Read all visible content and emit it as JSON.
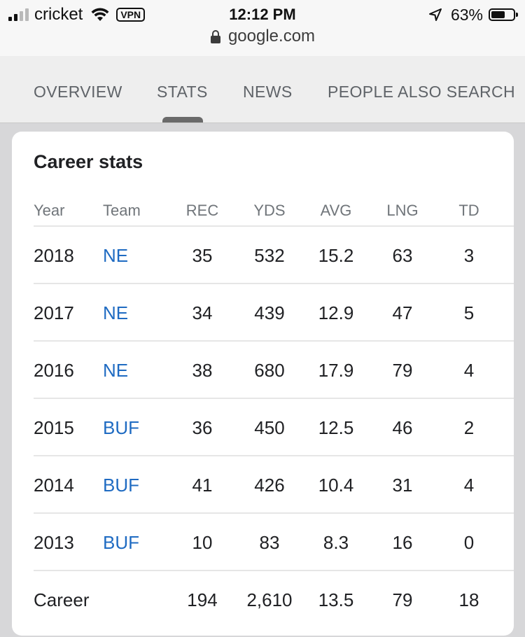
{
  "status_bar": {
    "carrier": "cricket",
    "vpn_label": "VPN",
    "time": "12:12 PM",
    "battery_percent": "63%",
    "battery_level": 0.63,
    "signal_bars": 4,
    "signal_bars_active": 2,
    "url": "google.com"
  },
  "tabs": [
    {
      "label": "OVERVIEW",
      "selected": false
    },
    {
      "label": "STATS",
      "selected": true
    },
    {
      "label": "NEWS",
      "selected": false
    },
    {
      "label": "PEOPLE ALSO SEARCH",
      "selected": false
    }
  ],
  "card": {
    "title": "Career stats",
    "columns": [
      "Year",
      "Team",
      "REC",
      "YDS",
      "AVG",
      "LNG",
      "TD"
    ],
    "rows": [
      {
        "year": "2018",
        "team": "NE",
        "rec": "35",
        "yds": "532",
        "avg": "15.2",
        "lng": "63",
        "td": "3"
      },
      {
        "year": "2017",
        "team": "NE",
        "rec": "34",
        "yds": "439",
        "avg": "12.9",
        "lng": "47",
        "td": "5"
      },
      {
        "year": "2016",
        "team": "NE",
        "rec": "38",
        "yds": "680",
        "avg": "17.9",
        "lng": "79",
        "td": "4"
      },
      {
        "year": "2015",
        "team": "BUF",
        "rec": "36",
        "yds": "450",
        "avg": "12.5",
        "lng": "46",
        "td": "2"
      },
      {
        "year": "2014",
        "team": "BUF",
        "rec": "41",
        "yds": "426",
        "avg": "10.4",
        "lng": "31",
        "td": "4"
      },
      {
        "year": "2013",
        "team": "BUF",
        "rec": "10",
        "yds": "83",
        "avg": "8.3",
        "lng": "16",
        "td": "0"
      }
    ],
    "career": {
      "label": "Career",
      "team": "",
      "rec": "194",
      "yds": "2,610",
      "avg": "13.5",
      "lng": "79",
      "td": "18"
    }
  },
  "colors": {
    "link": "#1f6bc2",
    "tab_text": "#5f6368",
    "tab_indicator": "#6a6a6a",
    "page_background": "#d7d7d9"
  },
  "icons": {
    "wifi": "wifi-icon",
    "location": "location-arrow-icon",
    "battery": "battery-icon",
    "lock": "lock-icon",
    "signal": "signal-icon"
  }
}
